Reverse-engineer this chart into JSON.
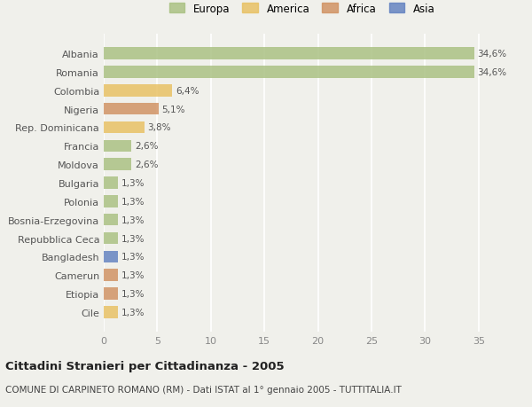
{
  "countries": [
    "Albania",
    "Romania",
    "Colombia",
    "Nigeria",
    "Rep. Dominicana",
    "Francia",
    "Moldova",
    "Bulgaria",
    "Polonia",
    "Bosnia-Erzegovina",
    "Repubblica Ceca",
    "Bangladesh",
    "Camerun",
    "Etiopia",
    "Cile"
  ],
  "values": [
    34.6,
    34.6,
    6.4,
    5.1,
    3.8,
    2.6,
    2.6,
    1.3,
    1.3,
    1.3,
    1.3,
    1.3,
    1.3,
    1.3,
    1.3
  ],
  "labels": [
    "34,6%",
    "34,6%",
    "6,4%",
    "5,1%",
    "3,8%",
    "2,6%",
    "2,6%",
    "1,3%",
    "1,3%",
    "1,3%",
    "1,3%",
    "1,3%",
    "1,3%",
    "1,3%",
    "1,3%"
  ],
  "colors": [
    "#a8c080",
    "#a8c080",
    "#e8c060",
    "#d09060",
    "#e8c060",
    "#a8c080",
    "#a8c080",
    "#a8c080",
    "#a8c080",
    "#a8c080",
    "#a8c080",
    "#6080c0",
    "#d09060",
    "#d09060",
    "#e8c060"
  ],
  "legend_labels": [
    "Europa",
    "America",
    "Africa",
    "Asia"
  ],
  "legend_colors": [
    "#a8c080",
    "#e8c060",
    "#d09060",
    "#6080c0"
  ],
  "xlim": [
    0,
    37
  ],
  "xticks": [
    0,
    5,
    10,
    15,
    20,
    25,
    30,
    35
  ],
  "title": "Cittadini Stranieri per Cittadinanza - 2005",
  "subtitle": "COMUNE DI CARPINETO ROMANO (RM) - Dati ISTAT al 1° gennaio 2005 - TUTTITALIA.IT",
  "background_color": "#f0f0eb",
  "bar_height": 0.65,
  "grid_color": "#ffffff",
  "label_fontsize": 7.5,
  "ytick_fontsize": 8,
  "xtick_fontsize": 8,
  "title_fontsize": 9.5,
  "subtitle_fontsize": 7.5
}
